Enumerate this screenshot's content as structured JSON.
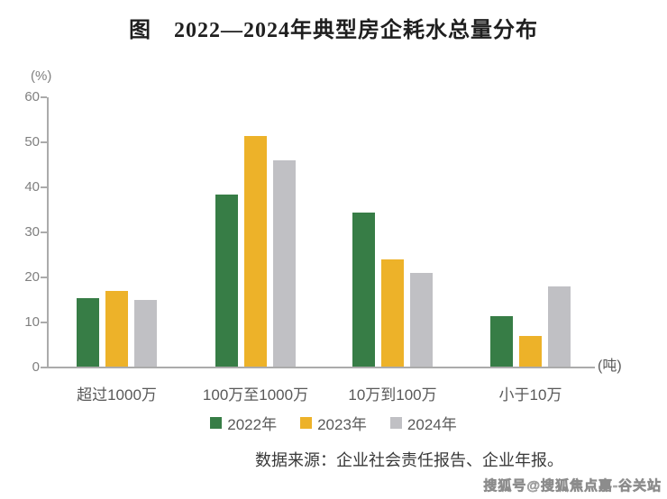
{
  "title": "图　2022—2024年典型房企耗水总量分布",
  "y_axis_unit": "(%)",
  "x_axis_unit": "(吨)",
  "source_note": "数据来源：企业社会责任报告、企业年报。",
  "watermark": "搜狐号@搜狐焦点嘉-谷关站",
  "colors": {
    "series_2022": "#377D46",
    "series_2023": "#EDB229",
    "series_2024": "#C0C0C4",
    "axis": "#ABABAB",
    "tick_text": "#7F7F7F",
    "label_text": "#595959"
  },
  "chart_data": {
    "type": "bar",
    "title": "图　2022—2024年典型房企耗水总量分布",
    "categories": [
      "超过1000万",
      "100万至1000万",
      "10万到100万",
      "小于10万"
    ],
    "series": [
      {
        "name": "2022年",
        "color": "#377D46",
        "values": [
          15.5,
          38.5,
          34.5,
          11.5
        ]
      },
      {
        "name": "2023年",
        "color": "#EDB229",
        "values": [
          17,
          51.5,
          24,
          7
        ]
      },
      {
        "name": "2024年",
        "color": "#C0C0C4",
        "values": [
          15,
          46,
          21,
          18
        ]
      }
    ],
    "ylabel": "(%)",
    "xlabel": "(吨)",
    "ylim": [
      0,
      60
    ],
    "yticks": [
      0,
      10,
      20,
      30,
      40,
      50,
      60
    ],
    "grid": false,
    "legend_position": "bottom"
  }
}
